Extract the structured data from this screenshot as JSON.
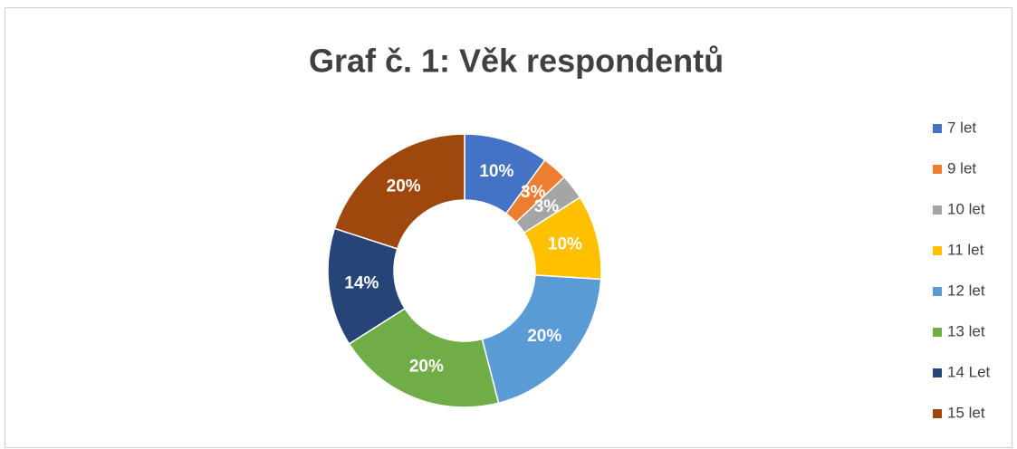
{
  "chart_data": {
    "type": "donut",
    "title": "Graf č. 1: Věk respondentů",
    "categories": [
      "7 let",
      "9 let",
      "10 let",
      "11 let",
      "12 let",
      "13 let",
      "14 Let",
      "15 let"
    ],
    "values": [
      10,
      3,
      3,
      10,
      20,
      20,
      14,
      20
    ],
    "value_labels": [
      "10%",
      "3%",
      "3%",
      "10%",
      "20%",
      "20%",
      "14%",
      "20%"
    ],
    "colors": [
      "#4472c4",
      "#ed7d31",
      "#a5a5a5",
      "#ffc000",
      "#5b9bd5",
      "#70ad47",
      "#264478",
      "#9e480e"
    ],
    "legend": "right"
  }
}
